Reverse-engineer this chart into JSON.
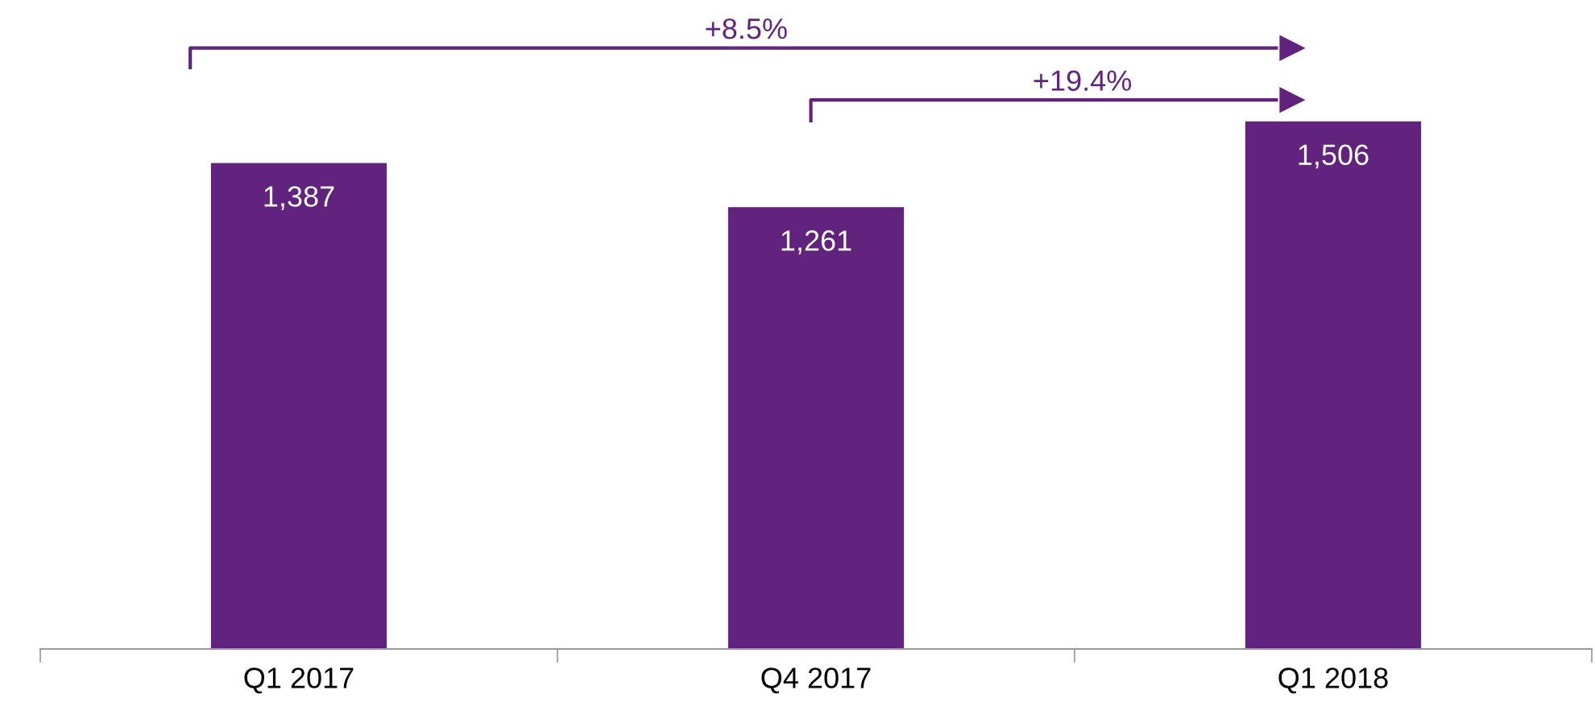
{
  "chart_data": {
    "type": "bar",
    "categories": [
      "Q1 2017",
      "Q4 2017",
      "Q1 2018"
    ],
    "values": [
      1387,
      1261,
      1506
    ],
    "value_labels": [
      "1,387",
      "1,261",
      "1,506"
    ],
    "color": "#62237f",
    "tick_labels": "x",
    "annotations": [
      "+8.5%",
      "+19.4%"
    ]
  }
}
